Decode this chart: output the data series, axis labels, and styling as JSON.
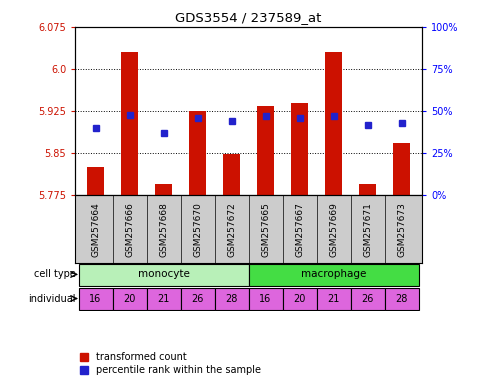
{
  "title": "GDS3554 / 237589_at",
  "samples": [
    "GSM257664",
    "GSM257666",
    "GSM257668",
    "GSM257670",
    "GSM257672",
    "GSM257665",
    "GSM257667",
    "GSM257669",
    "GSM257671",
    "GSM257673"
  ],
  "transformed_count": [
    5.825,
    6.03,
    5.795,
    5.925,
    5.848,
    5.935,
    5.94,
    6.03,
    5.795,
    5.868
  ],
  "percentile_rank": [
    40,
    48,
    37,
    46,
    44,
    47,
    42,
    43
  ],
  "percentile_rank_all": [
    40,
    48,
    37,
    46,
    44,
    47,
    46,
    47,
    42,
    43
  ],
  "y_min": 5.775,
  "y_max": 6.075,
  "y_ticks": [
    5.775,
    5.85,
    5.925,
    6.0,
    6.075
  ],
  "y_right_ticks": [
    0,
    25,
    50,
    75,
    100
  ],
  "y_right_labels": [
    "0%",
    "25%",
    "50%",
    "75%",
    "100%"
  ],
  "cell_type_colors": {
    "monocyte": "#b8f0b8",
    "macrophage": "#44dd44"
  },
  "individuals": [
    "16",
    "20",
    "21",
    "26",
    "28",
    "16",
    "20",
    "21",
    "26",
    "28"
  ],
  "individual_color": "#dd66dd",
  "bar_color": "#cc1100",
  "marker_color": "#2222cc",
  "bar_width": 0.5,
  "background_color": "#ffffff",
  "label_area_bg": "#cccccc",
  "legend_red_label": "transformed count",
  "legend_blue_label": "percentile rank within the sample"
}
